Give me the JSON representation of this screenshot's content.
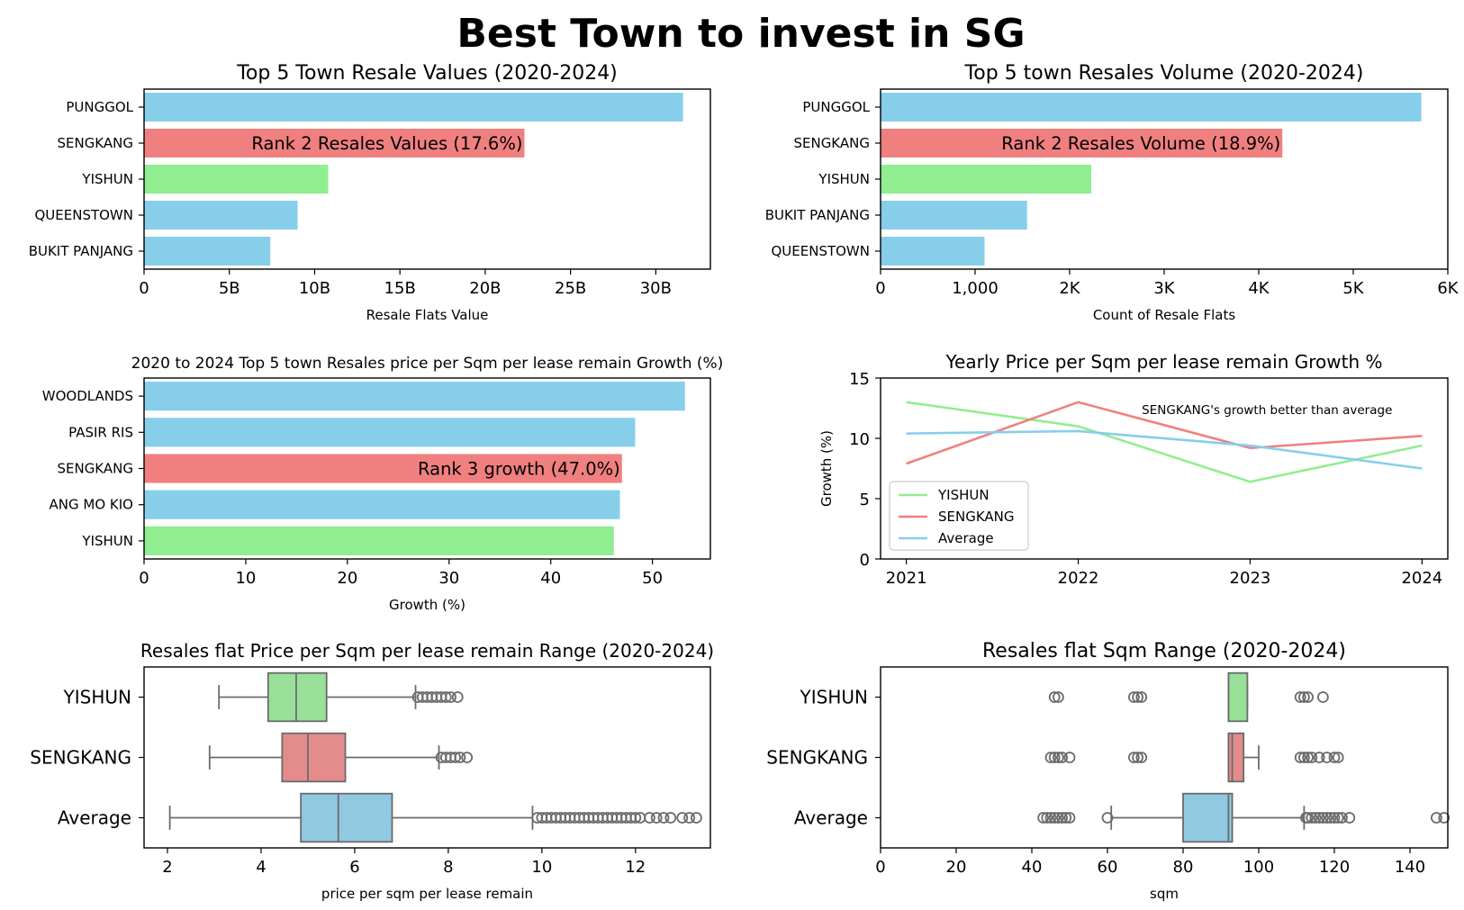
{
  "figure_title": "Best Town to invest in SG",
  "colors": {
    "highlight": "#f08080",
    "compare": "#90ee90",
    "base": "#87ceeb",
    "box_highlight": "#e48b8b",
    "box_compare": "#98e098",
    "box_base": "#91c9e0",
    "whisker": "#6b6b6b"
  },
  "chart_data": [
    {
      "type": "bar",
      "orientation": "horizontal",
      "title": "Top 5 Town Resale Values (2020-2024)",
      "xlabel": "Resale Flats Value",
      "ylabel": "",
      "categories": [
        "PUNGGOL",
        "SENGKANG",
        "YISHUN",
        "QUEENSTOWN",
        "BUKIT PANJANG"
      ],
      "values": [
        31.6,
        22.3,
        10.8,
        9.0,
        7.4
      ],
      "value_unit": "B",
      "xlim": [
        0,
        33.2
      ],
      "xticks": [
        0,
        5,
        10,
        15,
        20,
        25,
        30
      ],
      "xtick_labels": [
        "0",
        "5B",
        "10B",
        "15B",
        "20B",
        "25B",
        "30B"
      ],
      "bar_colors": [
        "base",
        "highlight",
        "compare",
        "base",
        "base"
      ],
      "annotation": {
        "category": "SENGKANG",
        "text": "Rank 2 Resales Values (17.6%)"
      }
    },
    {
      "type": "bar",
      "orientation": "horizontal",
      "title": "Top 5 town Resales Volume (2020-2024)",
      "xlabel": "Count of Resale Flats",
      "ylabel": "",
      "categories": [
        "PUNGGOL",
        "SENGKANG",
        "YISHUN",
        "BUKIT PANJANG",
        "QUEENSTOWN"
      ],
      "values": [
        5720,
        4250,
        2230,
        1550,
        1100
      ],
      "xlim": [
        0,
        6000
      ],
      "xticks": [
        0,
        1000,
        2000,
        3000,
        4000,
        5000,
        6000
      ],
      "xtick_labels": [
        "0",
        "1,000",
        "2K",
        "3K",
        "4K",
        "5K",
        "6K"
      ],
      "bar_colors": [
        "base",
        "highlight",
        "compare",
        "base",
        "base"
      ],
      "annotation": {
        "category": "SENGKANG",
        "text": "Rank 2 Resales Volume (18.9%)"
      }
    },
    {
      "type": "bar",
      "orientation": "horizontal",
      "title": "2020 to 2024 Top 5 town Resales price per Sqm per lease remain Growth (%)",
      "xlabel": "Growth (%)",
      "ylabel": "",
      "categories": [
        "WOODLANDS",
        "PASIR RIS",
        "SENGKANG",
        "ANG MO KIO",
        "YISHUN"
      ],
      "values": [
        53.2,
        48.3,
        47.0,
        46.8,
        46.2
      ],
      "xlim": [
        0,
        55.7
      ],
      "xticks": [
        0,
        10,
        20,
        30,
        40,
        50
      ],
      "xtick_labels": [
        "0",
        "10",
        "20",
        "30",
        "40",
        "50"
      ],
      "bar_colors": [
        "base",
        "base",
        "highlight",
        "base",
        "compare"
      ],
      "annotation": {
        "category": "SENGKANG",
        "text": "Rank 3 growth (47.0%)"
      }
    },
    {
      "type": "line",
      "title": "Yearly Price per Sqm per lease remain Growth %",
      "xlabel": "",
      "ylabel": "Growth (%)",
      "x": [
        2021,
        2022,
        2023,
        2024
      ],
      "xlim": [
        2020.85,
        2024.15
      ],
      "ylim": [
        0,
        15
      ],
      "xticks": [
        2021,
        2022,
        2023,
        2024
      ],
      "yticks": [
        0,
        5,
        10,
        15
      ],
      "series": [
        {
          "name": "YISHUN",
          "values": [
            13.0,
            11.0,
            6.4,
            9.4
          ],
          "color": "compare"
        },
        {
          "name": "SENGKANG",
          "values": [
            7.9,
            13.0,
            9.2,
            10.2
          ],
          "color": "highlight"
        },
        {
          "name": "Average",
          "values": [
            10.4,
            10.6,
            9.4,
            7.5
          ],
          "color": "base"
        }
      ],
      "legend": "lower-left",
      "annotation": {
        "text": "SENGKANG's growth better than average",
        "x": 2022.37,
        "y": 12.4
      }
    },
    {
      "type": "box",
      "orientation": "horizontal",
      "title": "Resales flat Price per Sqm per lease remain Range (2020-2024)",
      "xlabel": "price per sqm per lease remain",
      "ylabel": "",
      "xlim": [
        1.5,
        13.6
      ],
      "xticks": [
        2,
        4,
        6,
        8,
        10,
        12
      ],
      "xtick_labels": [
        "2",
        "4",
        "6",
        "8",
        "10",
        "12"
      ],
      "categories": [
        "YISHUN",
        "SENGKANG",
        "Average"
      ],
      "boxes": [
        {
          "name": "YISHUN",
          "min": 3.1,
          "q1": 4.15,
          "median": 4.75,
          "q3": 5.4,
          "max": 7.3,
          "outliers": [
            7.35,
            7.45,
            7.55,
            7.65,
            7.75,
            7.85,
            7.95,
            8.05,
            8.2
          ],
          "color": "box_compare"
        },
        {
          "name": "SENGKANG",
          "min": 2.9,
          "q1": 4.45,
          "median": 5.0,
          "q3": 5.8,
          "max": 7.8,
          "outliers": [
            7.85,
            7.95,
            8.05,
            8.15,
            8.25,
            8.4
          ],
          "color": "box_highlight"
        },
        {
          "name": "Average",
          "min": 2.05,
          "q1": 4.85,
          "median": 5.65,
          "q3": 6.8,
          "max": 9.8,
          "outliers": [
            9.9,
            10.0,
            10.1,
            10.2,
            10.3,
            10.4,
            10.5,
            10.6,
            10.7,
            10.8,
            10.9,
            11.0,
            11.1,
            11.2,
            11.3,
            11.4,
            11.5,
            11.6,
            11.7,
            11.8,
            11.9,
            12.0,
            12.1,
            12.3,
            12.45,
            12.6,
            12.75,
            13.0,
            13.15,
            13.3
          ],
          "color": "box_base"
        }
      ]
    },
    {
      "type": "box",
      "orientation": "horizontal",
      "title": "Resales flat Sqm Range (2020-2024)",
      "xlabel": "sqm",
      "ylabel": "",
      "xlim": [
        0,
        150
      ],
      "xticks": [
        0,
        20,
        40,
        60,
        80,
        100,
        120,
        140
      ],
      "xtick_labels": [
        "0",
        "20",
        "40",
        "60",
        "80",
        "100",
        "120",
        "140"
      ],
      "categories": [
        "YISHUN",
        "SENGKANG",
        "Average"
      ],
      "boxes": [
        {
          "name": "YISHUN",
          "min": 92,
          "q1": 92,
          "median": 92,
          "q3": 97,
          "max": 97,
          "outliers": [
            46,
            47,
            67,
            68,
            69,
            111,
            112,
            113,
            117
          ],
          "color": "box_compare"
        },
        {
          "name": "SENGKANG",
          "min": 92,
          "q1": 92,
          "median": 93,
          "q3": 96,
          "max": 100,
          "outliers": [
            45,
            46,
            47,
            48,
            50,
            67,
            68,
            69,
            111,
            112,
            113,
            114,
            116,
            118,
            120,
            121
          ],
          "color": "box_highlight"
        },
        {
          "name": "Average",
          "min": 61,
          "q1": 80,
          "median": 92,
          "q3": 93,
          "max": 112,
          "outliers": [
            43,
            44,
            45,
            46,
            47,
            48,
            49,
            50,
            60,
            112.5,
            113,
            114,
            115,
            116,
            117,
            118,
            119,
            120,
            121,
            122,
            124,
            147,
            149
          ],
          "color": "box_base"
        }
      ]
    }
  ]
}
